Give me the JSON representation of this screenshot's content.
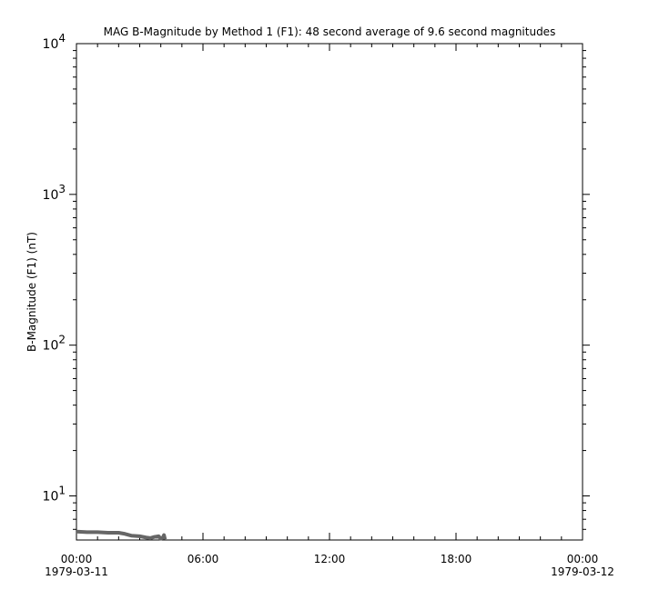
{
  "chart_data": {
    "type": "line",
    "title": "MAG  B-Magnitude by Method 1 (F1): 48 second average of 9.6 second magnitudes",
    "xlabel": "",
    "ylabel": "B-Magnitude (F1) (nT)",
    "yscale": "log",
    "ylim": [
      5.1,
      10000
    ],
    "xlim_hours": [
      0,
      24
    ],
    "y_ticks": [
      {
        "base": "10",
        "exp": "1",
        "value": 10
      },
      {
        "base": "10",
        "exp": "2",
        "value": 100
      },
      {
        "base": "10",
        "exp": "3",
        "value": 1000
      },
      {
        "base": "10",
        "exp": "4",
        "value": 10000
      }
    ],
    "x_ticks": [
      {
        "time": "00:00",
        "date": "1979-03-11",
        "hour": 0
      },
      {
        "time": "06:00",
        "date": "",
        "hour": 6
      },
      {
        "time": "12:00",
        "date": "",
        "hour": 12
      },
      {
        "time": "18:00",
        "date": "",
        "hour": 18
      },
      {
        "time": "00:00",
        "date": "1979-03-12",
        "hour": 24
      }
    ],
    "grid": false,
    "series": [
      {
        "color": "#666666",
        "x_hours": [
          0,
          0.5,
          1.0,
          1.5,
          2.0,
          2.3,
          2.6,
          3.0,
          3.3,
          3.5,
          3.7,
          3.9,
          4.0,
          4.1,
          4.15,
          4.2
        ],
        "values": [
          5.8,
          5.75,
          5.75,
          5.7,
          5.7,
          5.6,
          5.45,
          5.4,
          5.3,
          5.25,
          5.35,
          5.4,
          5.2,
          5.3,
          5.5,
          5.15
        ]
      }
    ]
  }
}
